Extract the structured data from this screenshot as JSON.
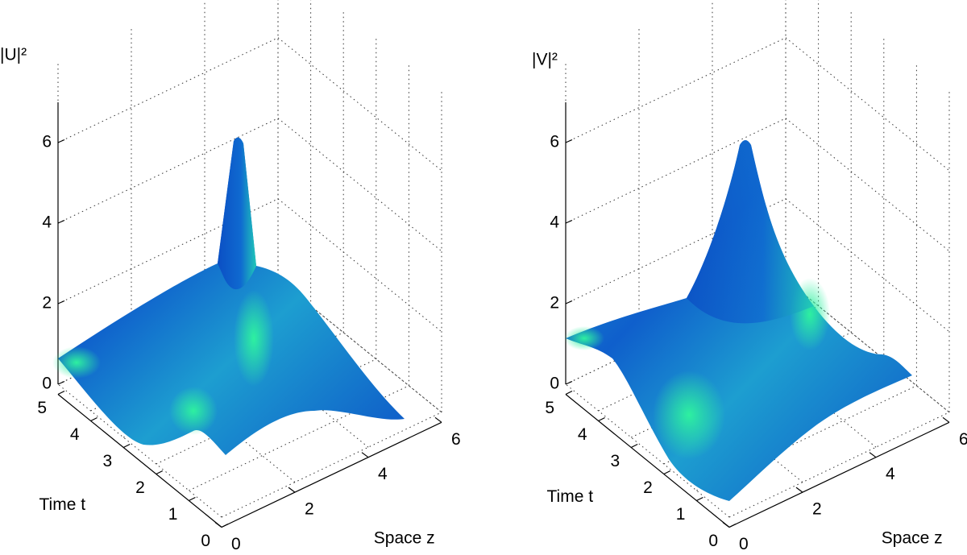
{
  "chart_data": [
    {
      "type": "surface",
      "zlabel": "|U|²",
      "xlabel": "Space z",
      "ylabel": "Time t",
      "xlim": [
        0,
        6
      ],
      "xticks": [
        0,
        2,
        4,
        6
      ],
      "ylim": [
        0,
        5
      ],
      "yticks": [
        0,
        1,
        2,
        3,
        4,
        5
      ],
      "zlim": [
        0,
        7
      ],
      "zticks": [
        0,
        2,
        4,
        6
      ],
      "grid": true
    },
    {
      "type": "surface",
      "zlabel": "|V|²",
      "xlabel": "Space z",
      "ylabel": "Time t",
      "xlim": [
        0,
        6
      ],
      "xticks": [
        0,
        2,
        4,
        6
      ],
      "ylim": [
        0,
        5
      ],
      "yticks": [
        0,
        1,
        2,
        3,
        4,
        5
      ],
      "zlim": [
        0,
        7
      ],
      "zticks": [
        0,
        2,
        4,
        6
      ],
      "grid": true
    }
  ]
}
